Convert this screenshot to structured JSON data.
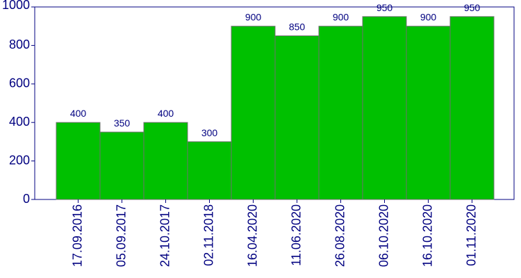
{
  "chart_data": {
    "type": "bar",
    "categories": [
      "17.09.2016",
      "05.09.2017",
      "24.10.2017",
      "02.11.2018",
      "16.04.2020",
      "11.06.2020",
      "26.08.2020",
      "06.10.2020",
      "16.10.2020",
      "01.11.2020"
    ],
    "values": [
      400,
      350,
      400,
      300,
      900,
      850,
      900,
      950,
      900,
      950
    ],
    "data_labels": [
      "400",
      "350",
      "400",
      "300",
      "900",
      "850",
      "900",
      "950",
      "900",
      "950"
    ],
    "y_ticks": [
      0,
      200,
      400,
      600,
      800,
      1000
    ],
    "y_tick_labels": [
      "0",
      "200",
      "400",
      "600",
      "800",
      "1000"
    ],
    "ylim": [
      0,
      1000
    ],
    "title": "",
    "xlabel": "",
    "ylabel": "",
    "grid": false,
    "legend": "none",
    "colors": {
      "bar_fill": "#00c000",
      "bar_stroke": "#707070",
      "axis": "#000080",
      "text": "#000080"
    }
  }
}
